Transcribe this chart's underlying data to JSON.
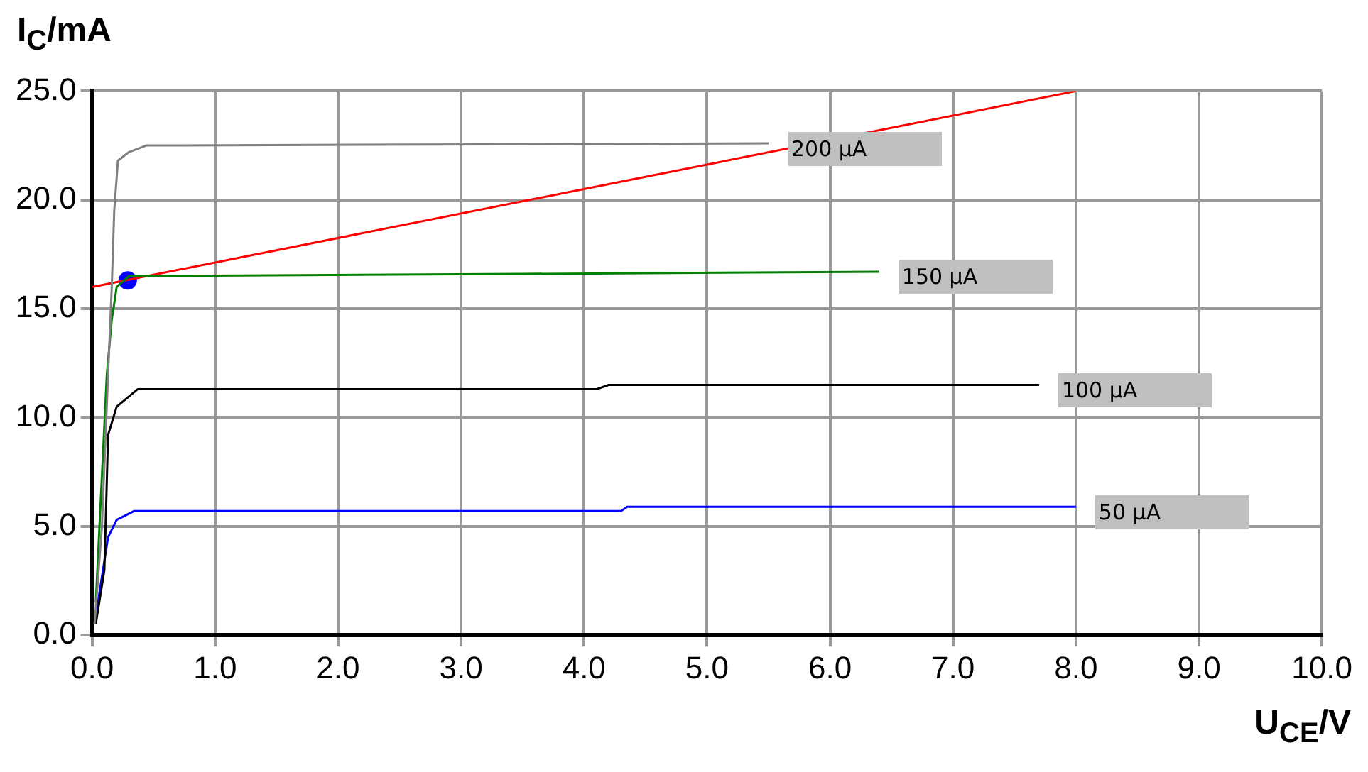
{
  "chart_data": {
    "type": "line",
    "xlabel": "U$_{CE}$/V",
    "ylabel": "I$_{C}$/mA",
    "xlim": [
      0,
      10
    ],
    "ylim": [
      0,
      25
    ],
    "xticks": [
      {
        "value": 0,
        "label": "0.0"
      },
      {
        "value": 1,
        "label": "1.0"
      },
      {
        "value": 2,
        "label": "2.0"
      },
      {
        "value": 3,
        "label": "3.0"
      },
      {
        "value": 4,
        "label": "4.0"
      },
      {
        "value": 5,
        "label": "5.0"
      },
      {
        "value": 6,
        "label": "6.0"
      },
      {
        "value": 7,
        "label": "7.0"
      },
      {
        "value": 8,
        "label": "8.0"
      },
      {
        "value": 9,
        "label": "9.0"
      },
      {
        "value": 10,
        "label": "10.0"
      }
    ],
    "yticks": [
      {
        "value": 0,
        "label": "0.0"
      },
      {
        "value": 5,
        "label": "5.0"
      },
      {
        "value": 10,
        "label": "10.0"
      },
      {
        "value": 15,
        "label": "15.0"
      },
      {
        "value": 20,
        "label": "20.0"
      },
      {
        "value": 25,
        "label": "25.0"
      }
    ],
    "grid": true,
    "legend": false,
    "marker": "none",
    "line_style": "solid",
    "series": [
      {
        "name": "200 µA",
        "color": "#808080",
        "x": [
          0.02,
          0.08,
          0.13,
          0.16,
          0.18,
          0.21,
          0.3,
          0.44,
          5.5
        ],
        "values": [
          0.5,
          5,
          12,
          16,
          19.5,
          21.8,
          22.2,
          22.5,
          22.6
        ]
      },
      {
        "name": "150 µA",
        "color": "#008000",
        "x": [
          0.03,
          0.06,
          0.12,
          0.16,
          0.2,
          0.3,
          3.5,
          6.4
        ],
        "values": [
          1.5,
          5,
          12,
          14.5,
          16,
          16.5,
          16.6,
          16.7
        ]
      },
      {
        "name": "100 µA",
        "color": "#000000",
        "x": [
          0.03,
          0.1,
          0.13,
          0.2,
          0.37,
          4.1,
          4.2,
          7.7
        ],
        "values": [
          0.5,
          3,
          9.2,
          10.5,
          11.3,
          11.3,
          11.5,
          11.5
        ]
      },
      {
        "name": "50 µA",
        "color": "#0000ff",
        "x": [
          0.02,
          0.13,
          0.2,
          0.34,
          4.3,
          4.35,
          8.0
        ],
        "values": [
          0.5,
          4.5,
          5.3,
          5.7,
          5.7,
          5.9,
          5.9
        ]
      },
      {
        "color": "#ff0000",
        "x": [
          0,
          8.0
        ],
        "values": [
          16.0,
          25.0
        ]
      },
      {
        "type": "scatter",
        "marker": "circle",
        "color": "#0000ff",
        "x": [
          0.29
        ],
        "values": [
          16.3
        ]
      }
    ]
  }
}
